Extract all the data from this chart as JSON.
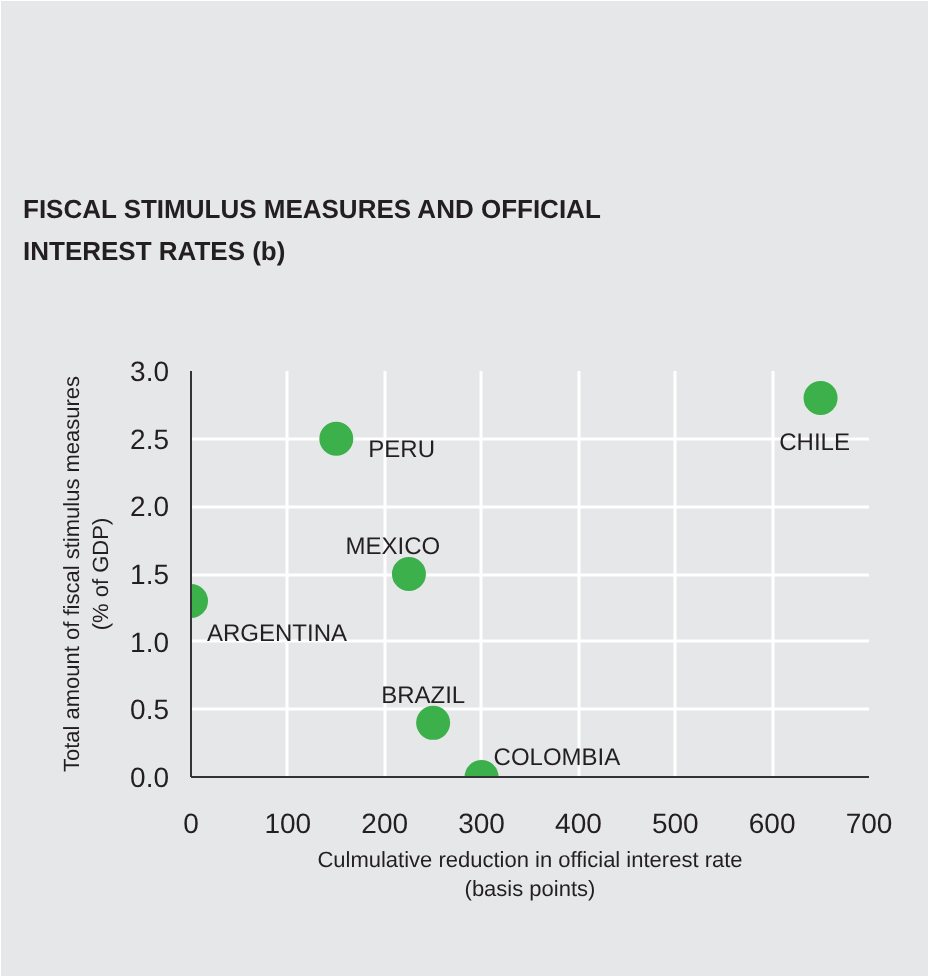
{
  "chart_data": {
    "type": "scatter",
    "title": "FISCAL STIMULUS MEASURES AND OFFICIAL INTEREST RATES (b)",
    "xlabel": "Culmulative reduction in official interest rate\n(basis points)",
    "ylabel": "Total amount of fiscal stimulus measures\n(% of GDP)",
    "x": [
      0,
      150,
      225,
      250,
      300,
      650
    ],
    "series": [
      {
        "color": "#3cb04a",
        "values": [
          1.3,
          2.5,
          1.5,
          0.4,
          0.0,
          2.8
        ]
      }
    ],
    "annotations": [
      {
        "text": "ARGENTINA",
        "x": 0,
        "y": 1.3
      },
      {
        "text": "PERU",
        "x": 150,
        "y": 2.5
      },
      {
        "text": "MEXICO",
        "x": 225,
        "y": 1.5
      },
      {
        "text": "BRAZIL",
        "x": 250,
        "y": 0.4
      },
      {
        "text": "COLOMBIA",
        "x": 300,
        "y": 0.0
      },
      {
        "text": "CHILE",
        "x": 650,
        "y": 2.8
      }
    ],
    "xlim": [
      0,
      700
    ],
    "ylim": [
      0,
      3.0
    ],
    "xticks": [
      0,
      100,
      200,
      300,
      400,
      500,
      600,
      700
    ],
    "yticks": [
      {
        "value": 0,
        "label": "0.0"
      },
      {
        "value": 0.5,
        "label": "0.5"
      },
      {
        "value": 1.0,
        "label": "1.0"
      },
      {
        "value": 1.5,
        "label": "1.5"
      },
      {
        "value": 2.0,
        "label": "2.0"
      },
      {
        "value": 2.5,
        "label": "2.5"
      },
      {
        "value": 3.0,
        "label": "3.0"
      }
    ],
    "grid": true,
    "marker": "circle"
  }
}
